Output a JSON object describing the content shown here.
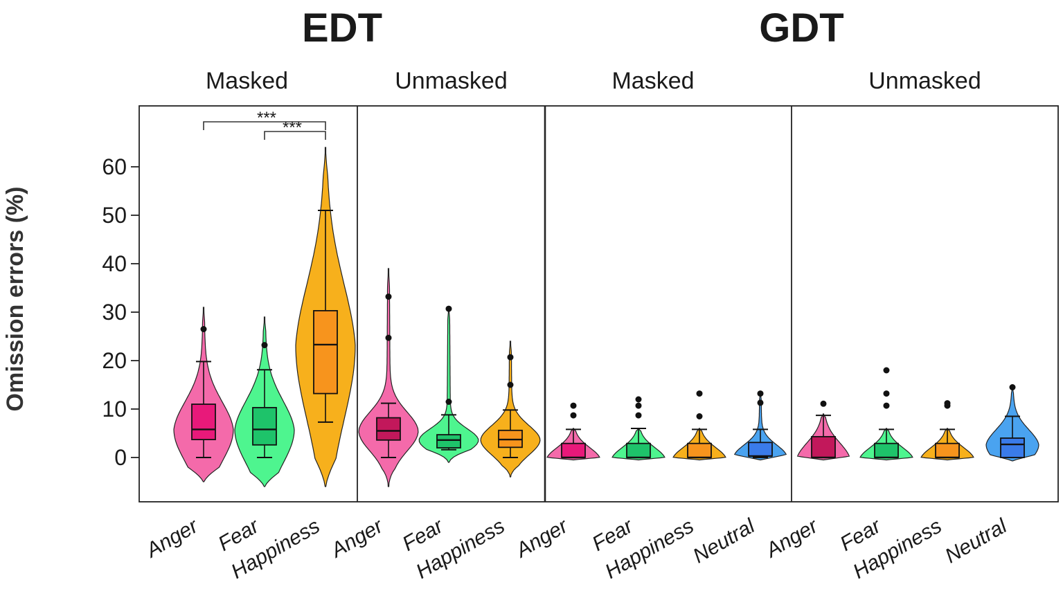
{
  "chart_data": {
    "type": "violin-box",
    "ylabel": "Omission errors (%)",
    "yticks": [
      0,
      10,
      20,
      30,
      40,
      50,
      60
    ],
    "ylim": [
      -9,
      72
    ],
    "colors": {
      "Anger": "#e8197a",
      "Fear": "#1ec36a",
      "Happiness": "#f7941d",
      "Neutral": "#3a7bea"
    },
    "tasks": [
      {
        "title": "EDT",
        "panels": [
          {
            "title": "Masked",
            "groups": [
              {
                "category": "Anger",
                "violin_color": "#f46aaa",
                "box_color": "#e8197a",
                "min": 0,
                "q1": 3.7,
                "median": 5.8,
                "q3": 11,
                "max": 19.8,
                "violin_range": [
                  -5,
                  31
                ],
                "outliers": [
                  26.5
                ]
              },
              {
                "category": "Fear",
                "violin_color": "#4ef58f",
                "box_color": "#1ec36a",
                "min": 0,
                "q1": 2.6,
                "median": 5.8,
                "q3": 10.3,
                "max": 18.1,
                "violin_range": [
                  -6,
                  29
                ],
                "outliers": [
                  23.2
                ]
              },
              {
                "category": "Happiness",
                "violin_color": "#f7b01c",
                "box_color": "#f7941d",
                "min": 7.3,
                "q1": 13.2,
                "median": 23.3,
                "q3": 30.3,
                "max": 51,
                "violin_range": [
                  -6,
                  64
                ],
                "outliers": []
              }
            ],
            "significance": [
              {
                "from": "Anger",
                "to": "Happiness",
                "label": "***"
              },
              {
                "from": "Fear",
                "to": "Happiness",
                "label": "***"
              }
            ]
          },
          {
            "title": "Unmasked",
            "groups": [
              {
                "category": "Anger",
                "violin_color": "#f46aaa",
                "box_color": "#c2185b",
                "min": 0,
                "q1": 3.6,
                "median": 5.5,
                "q3": 8.2,
                "max": 11.2,
                "violin_range": [
                  -6,
                  39
                ],
                "outliers": [
                  24.7,
                  33.2
                ]
              },
              {
                "category": "Fear",
                "violin_color": "#4ef58f",
                "box_color": "#1ec36a",
                "min": 1.6,
                "q1": 2,
                "median": 3.6,
                "q3": 4.7,
                "max": 8.8,
                "violin_range": [
                  -1,
                  31
                ],
                "outliers": [
                  11.5,
                  30.7
                ]
              },
              {
                "category": "Happiness",
                "violin_color": "#f7b01c",
                "box_color": "#f7941d",
                "min": 0,
                "q1": 2.1,
                "median": 3.7,
                "q3": 5.6,
                "max": 9.8,
                "violin_range": [
                  -4,
                  24
                ],
                "outliers": [
                  15,
                  20.7
                ]
              }
            ],
            "significance": []
          }
        ]
      },
      {
        "title": "GDT",
        "panels": [
          {
            "title": "Masked",
            "groups": [
              {
                "category": "Anger",
                "violin_color": "#f46aaa",
                "box_color": "#e8197a",
                "min": 0,
                "q1": 0,
                "median": 0,
                "q3": 2.9,
                "max": 5.8,
                "violin_range": [
                  -0.5,
                  6
                ],
                "outliers": [
                  8.7,
                  10.7
                ]
              },
              {
                "category": "Fear",
                "violin_color": "#4ef58f",
                "box_color": "#1ec36a",
                "min": 0,
                "q1": 0,
                "median": 0,
                "q3": 2.9,
                "max": 6,
                "violin_range": [
                  -0.5,
                  6
                ],
                "outliers": [
                  8.7,
                  10.7,
                  12
                ]
              },
              {
                "category": "Happiness",
                "violin_color": "#f7b01c",
                "box_color": "#f7941d",
                "min": 0,
                "q1": 0,
                "median": 0,
                "q3": 2.9,
                "max": 5.8,
                "violin_range": [
                  -0.5,
                  6
                ],
                "outliers": [
                  8.5,
                  13.2
                ]
              },
              {
                "category": "Neutral",
                "violin_color": "#4aa3f0",
                "box_color": "#3a7bea",
                "min": 0,
                "q1": 0.3,
                "median": 0.3,
                "q3": 3.1,
                "max": 5.8,
                "violin_range": [
                  -0.5,
                  13.2
                ],
                "outliers": [
                  11.3,
                  13.2
                ]
              }
            ],
            "significance": []
          },
          {
            "title": "Unmasked",
            "groups": [
              {
                "category": "Anger",
                "violin_color": "#f46aaa",
                "box_color": "#c2185b",
                "min": 0,
                "q1": 0,
                "median": 0,
                "q3": 4.3,
                "max": 8.7,
                "violin_range": [
                  -0.5,
                  9
                ],
                "outliers": [
                  11.1
                ]
              },
              {
                "category": "Fear",
                "violin_color": "#4ef58f",
                "box_color": "#1ec36a",
                "min": 0,
                "q1": 0,
                "median": 0,
                "q3": 2.9,
                "max": 5.8,
                "violin_range": [
                  -0.5,
                  6
                ],
                "outliers": [
                  10.7,
                  13.2,
                  18
                ]
              },
              {
                "category": "Happiness",
                "violin_color": "#f7b01c",
                "box_color": "#f7941d",
                "min": 0,
                "q1": 0,
                "median": 0,
                "q3": 2.9,
                "max": 5.8,
                "violin_range": [
                  -0.5,
                  6
                ],
                "outliers": [
                  10.7,
                  11.2
                ]
              },
              {
                "category": "Neutral",
                "violin_color": "#4aa3f0",
                "box_color": "#3a7bea",
                "min": 0,
                "q1": 0,
                "median": 2.7,
                "q3": 4,
                "max": 8.5,
                "violin_range": [
                  -0.7,
                  14.5
                ],
                "outliers": [
                  14.5
                ]
              }
            ],
            "significance": []
          }
        ]
      }
    ]
  }
}
